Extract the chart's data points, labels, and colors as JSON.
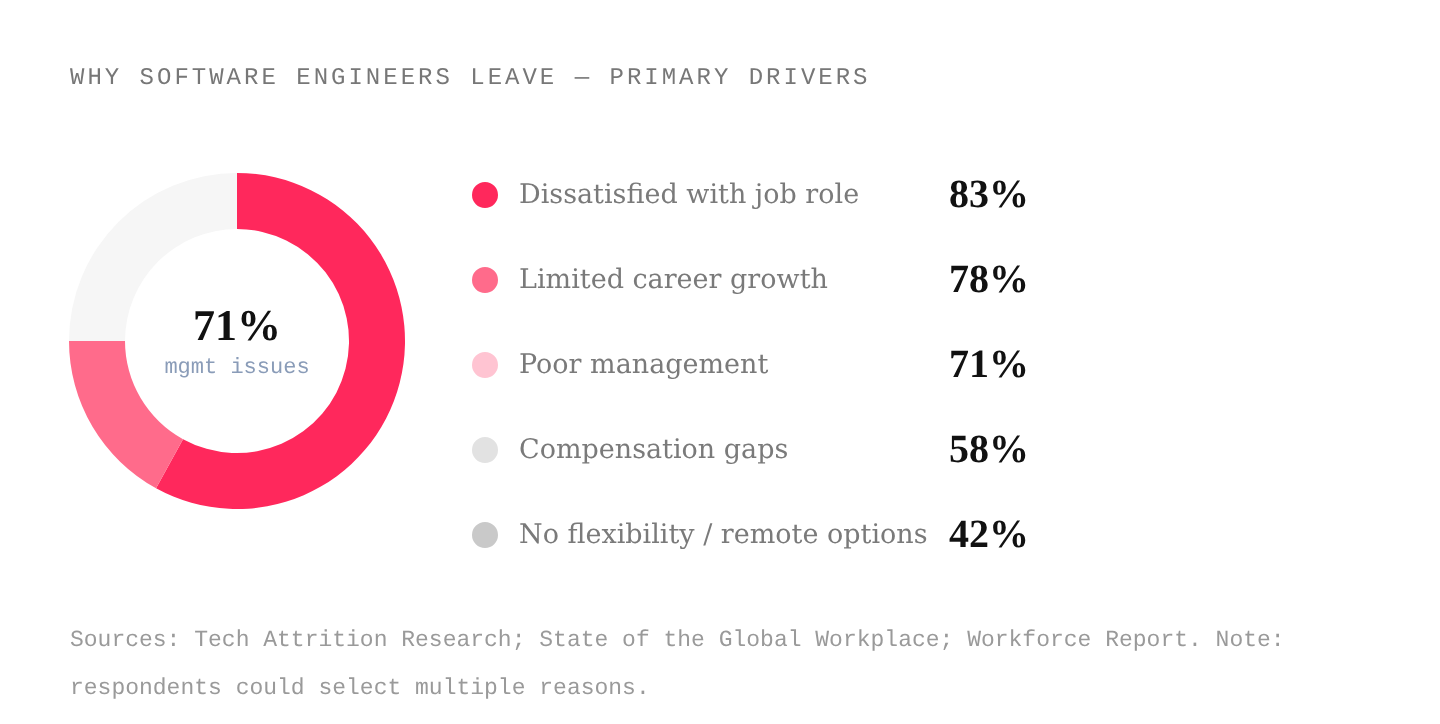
{
  "chart_data": [
    {
      "type": "donut",
      "title": "WHY SOFTWARE ENGINEERS LEAVE — PRIMARY DRIVERS",
      "categories": [
        null,
        null,
        null
      ],
      "values": [
        58,
        17,
        25
      ],
      "colors": [
        "#ff285c",
        "#ff6b8b",
        "#f6f6f6"
      ],
      "annotations": [
        "71%",
        "mgmt issues"
      ]
    },
    {
      "type": "other",
      "categories": [
        "Dissatisfied with job role",
        "Limited career growth",
        "Poor management",
        "Compensation gaps",
        "No flexibility / remote options"
      ],
      "values": [
        83,
        78,
        71,
        58,
        42
      ],
      "value_labels": [
        "83%",
        "78%",
        "71%",
        "58%",
        "42%"
      ],
      "colors": [
        "#ff285c",
        "#ff6b8b",
        "#ffc4d2",
        "#e2e2e2",
        "#c9c9c9"
      ],
      "annotations": [
        "Sources: Tech Attrition Research; State of the Global Workplace; Workforce Report. Note: respondents could select multiple reasons."
      ]
    }
  ]
}
